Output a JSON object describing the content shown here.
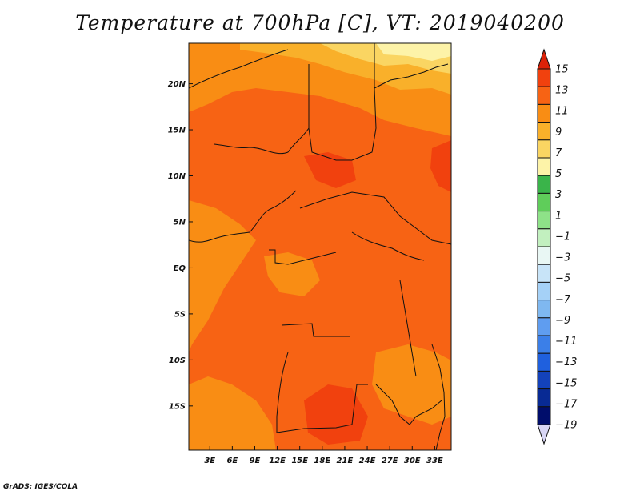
{
  "chart_data": {
    "type": "heatmap",
    "title": "Temperature at 700hPa [C], VT: 2019040200",
    "x_ticks": [
      "3E",
      "6E",
      "9E",
      "12E",
      "15E",
      "18E",
      "21E",
      "24E",
      "27E",
      "30E",
      "33E"
    ],
    "y_ticks": [
      "20N",
      "15N",
      "10N",
      "5N",
      "EQ",
      "5S",
      "10S",
      "15S"
    ],
    "x_tick_values": [
      3,
      6,
      9,
      12,
      15,
      18,
      21,
      24,
      27,
      30,
      33
    ],
    "y_tick_values": [
      20,
      15,
      10,
      5,
      0,
      -5,
      -10,
      -15
    ],
    "xlim": [
      0.2,
      35.2
    ],
    "ylim": [
      -19.8,
      24.4
    ],
    "colorbar": {
      "labels": [
        "15",
        "13",
        "11",
        "9",
        "7",
        "5",
        "3",
        "1",
        "−1",
        "−3",
        "−5",
        "−7",
        "−9",
        "−11",
        "−13",
        "−15",
        "−17",
        "−19"
      ],
      "colors": [
        "#dc2208",
        "#f1410e",
        "#f76314",
        "#f98d14",
        "#f9b02a",
        "#fad562",
        "#fdf3a8",
        "#3ab44a",
        "#5fcd5a",
        "#8ee288",
        "#c2f0bf",
        "#e9f7f4",
        "#c8e4f8",
        "#a5d1f7",
        "#7fb8f0",
        "#5f9df0",
        "#3b7fe8",
        "#1f60de",
        "#1342bb",
        "#082a94",
        "#000d6b",
        "#d8d6f5"
      ]
    },
    "regions": [
      {
        "level": 11,
        "color": "#f98d14"
      },
      {
        "level": 9,
        "color": "#f9b02a"
      },
      {
        "level": 7,
        "color": "#fad562"
      },
      {
        "level": 13,
        "color": "#f76314"
      },
      {
        "level": 15,
        "color": "#f1410e"
      }
    ]
  },
  "footer": "GrADS: IGES/COLA"
}
